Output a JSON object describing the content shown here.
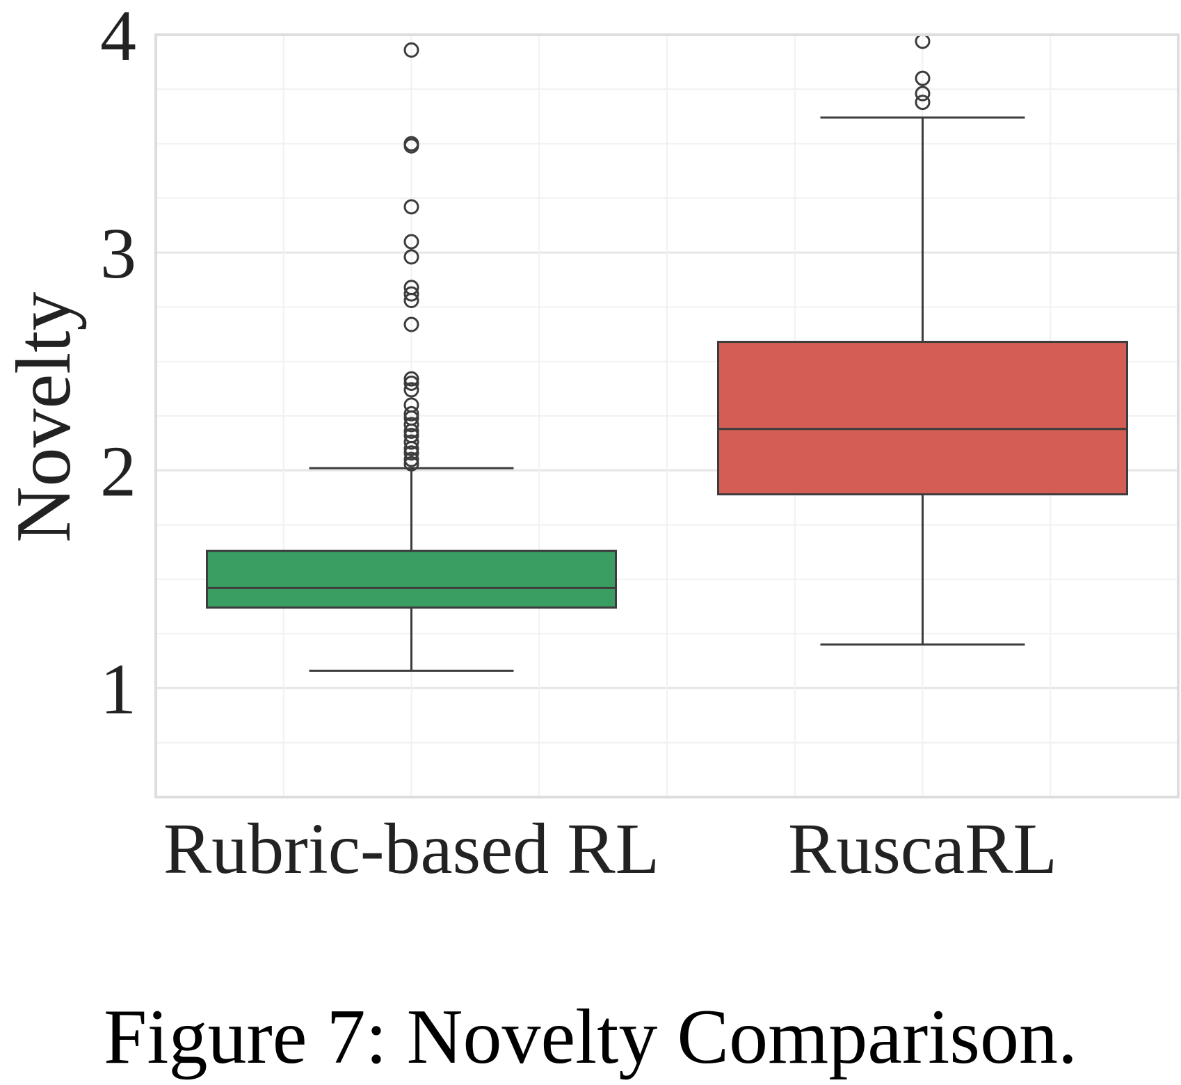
{
  "chart_data": {
    "type": "box",
    "ylabel": "Novelty",
    "ylim": [
      0.5,
      4.0
    ],
    "yticks": [
      1,
      2,
      3,
      4
    ],
    "yticks_labels": [
      "1",
      "2",
      "3",
      "4"
    ],
    "grid": true,
    "categories": [
      "Rubric-based RL",
      "RuscaRL"
    ],
    "boxes": [
      {
        "category": "Rubric-based RL",
        "color": "#3a9e63",
        "whisker_low": 1.08,
        "q1": 1.37,
        "median": 1.46,
        "q3": 1.63,
        "whisker_high": 2.01,
        "outliers": [
          3.93,
          3.5,
          3.49,
          3.21,
          3.05,
          2.98,
          2.84,
          2.81,
          2.78,
          2.67,
          2.42,
          2.4,
          2.37,
          2.3,
          2.26,
          2.24,
          2.21,
          2.18,
          2.16,
          2.13,
          2.1,
          2.08,
          2.05,
          2.03
        ]
      },
      {
        "category": "RuscaRL",
        "color": "#d45e55",
        "whisker_low": 1.2,
        "q1": 1.89,
        "median": 2.19,
        "q3": 2.59,
        "whisker_high": 3.62,
        "outliers": [
          3.97,
          3.8,
          3.73,
          3.69
        ]
      }
    ]
  },
  "caption": "Figure 7: Novelty Comparison."
}
